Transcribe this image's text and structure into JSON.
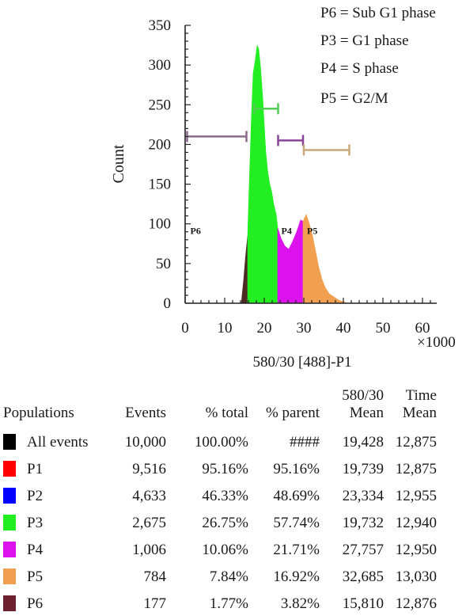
{
  "chart_data": {
    "type": "area",
    "xlabel": "580/30 [488]-P1",
    "x_multiplier": "×1000",
    "ylabel": "Count",
    "xlim": [
      0,
      60
    ],
    "ylim": [
      0,
      350
    ],
    "x_ticks": [
      0,
      10,
      20,
      30,
      40,
      50,
      60
    ],
    "y_ticks": [
      0,
      50,
      100,
      150,
      200,
      250,
      300,
      350
    ],
    "legend_lines": [
      "P6 = Sub G1 phase",
      "P3 = G1 phase",
      "P4 = S phase",
      "P5 = G2/M"
    ],
    "series": [
      {
        "name": "P6",
        "color": "#4a2a22",
        "x": [
          14.2,
          14.8,
          15.3,
          15.8
        ],
        "y": [
          0,
          30,
          60,
          85
        ]
      },
      {
        "name": "P3",
        "color": "#22ee22",
        "x": [
          15.8,
          16.2,
          16.8,
          17.2,
          17.7,
          18.2,
          18.6,
          19.1,
          19.6,
          20.0,
          20.4,
          20.9,
          21.4,
          21.9,
          22.4,
          23.0,
          23.4
        ],
        "y": [
          85,
          150,
          240,
          290,
          305,
          325,
          320,
          295,
          260,
          225,
          190,
          165,
          150,
          140,
          125,
          112,
          95
        ]
      },
      {
        "name": "P4",
        "color": "#dd11ee",
        "x": [
          23.4,
          24.2,
          25.2,
          26.2,
          27.2,
          28.2,
          29.2,
          29.8
        ],
        "y": [
          95,
          82,
          72,
          68,
          78,
          90,
          105,
          103
        ]
      },
      {
        "name": "P5",
        "color": "#f0a050",
        "x": [
          29.8,
          30.6,
          31.4,
          32.2,
          33.0,
          33.8,
          34.6,
          35.4,
          36.4,
          37.6,
          38.8,
          40.0,
          41.0
        ],
        "y": [
          103,
          112,
          100,
          85,
          65,
          45,
          30,
          20,
          12,
          8,
          4,
          2,
          0
        ]
      }
    ],
    "gates": [
      {
        "name": "P6",
        "label": "P6",
        "x1": 0.5,
        "x2": 15.5,
        "y": 210,
        "color": "#8a6a8a"
      },
      {
        "name": "P3",
        "label": "",
        "x1": 17.5,
        "x2": 23.5,
        "y": 245,
        "color": "#55cc55"
      },
      {
        "name": "P4",
        "label": "P4",
        "x1": 23.5,
        "x2": 29.8,
        "y": 205,
        "color": "#884499"
      },
      {
        "name": "P5",
        "label": "P5",
        "x1": 30.0,
        "x2": 41.5,
        "y": 193,
        "color": "#c8a878"
      }
    ]
  },
  "table": {
    "headers": {
      "populations": "Populations",
      "events": "Events",
      "pct_total": "% total",
      "pct_parent": "% parent",
      "mean_line1": "580/30",
      "mean_line2": "Mean",
      "time_line1": "Time",
      "time_line2": "Mean"
    },
    "rows": [
      {
        "name": "All events",
        "color": "#000000",
        "events": "10,000",
        "pct_total": "100.00%",
        "pct_parent": "####",
        "mean": "19,428",
        "time": "12,875"
      },
      {
        "name": "P1",
        "color": "#ff0000",
        "events": "9,516",
        "pct_total": "95.16%",
        "pct_parent": "95.16%",
        "mean": "19,739",
        "time": "12,875"
      },
      {
        "name": "P2",
        "color": "#0000ff",
        "events": "4,633",
        "pct_total": "46.33%",
        "pct_parent": "48.69%",
        "mean": "23,334",
        "time": "12,955"
      },
      {
        "name": "P3",
        "color": "#22ee22",
        "events": "2,675",
        "pct_total": "26.75%",
        "pct_parent": "57.74%",
        "mean": "19,732",
        "time": "12,940"
      },
      {
        "name": "P4",
        "color": "#dd11ee",
        "events": "1,006",
        "pct_total": "10.06%",
        "pct_parent": "21.71%",
        "mean": "27,757",
        "time": "12,950"
      },
      {
        "name": "P5",
        "color": "#f0a050",
        "events": "784",
        "pct_total": "7.84%",
        "pct_parent": "16.92%",
        "mean": "32,685",
        "time": "13,030"
      },
      {
        "name": "P6",
        "color": "#6e2030",
        "events": "177",
        "pct_total": "1.77%",
        "pct_parent": "3.82%",
        "mean": "15,810",
        "time": "12,876"
      }
    ]
  }
}
